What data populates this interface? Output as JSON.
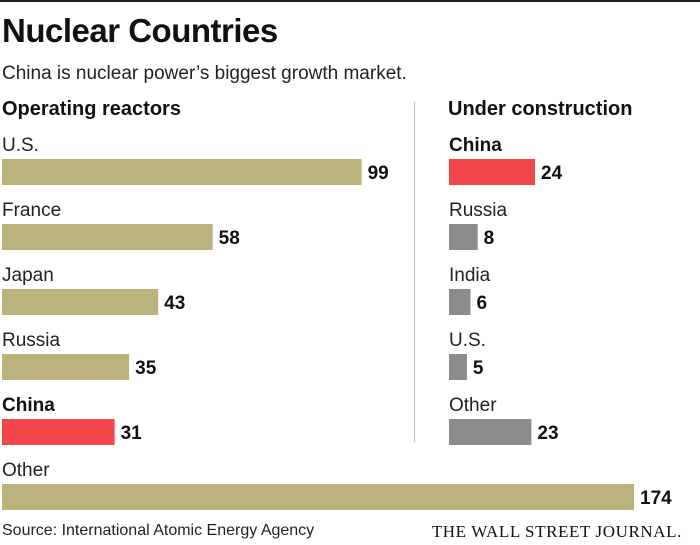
{
  "header": {
    "title": "Nuclear Countries",
    "subtitle": "China is nuclear power’s biggest growth market."
  },
  "footer": {
    "source": "Source: International Atomic Energy Agency",
    "brand": "THE WALL STREET JOURNAL."
  },
  "colors": {
    "bar": "#bcb27d",
    "highlight": "#f2464a",
    "gray": "#8c8c8c"
  },
  "chart_data": [
    {
      "type": "bar",
      "orientation": "horizontal",
      "title": "Operating reactors",
      "categories": [
        "U.S.",
        "France",
        "Japan",
        "Russia",
        "China",
        "Other"
      ],
      "values": [
        99,
        58,
        43,
        35,
        31,
        174
      ],
      "highlight": [
        "China"
      ],
      "xlim": [
        0,
        174
      ]
    },
    {
      "type": "bar",
      "orientation": "horizontal",
      "title": "Under construction",
      "categories": [
        "China",
        "Russia",
        "India",
        "U.S.",
        "Other"
      ],
      "values": [
        24,
        8,
        6,
        5,
        23
      ],
      "highlight": [
        "China"
      ],
      "xlim": [
        0,
        24
      ]
    }
  ]
}
